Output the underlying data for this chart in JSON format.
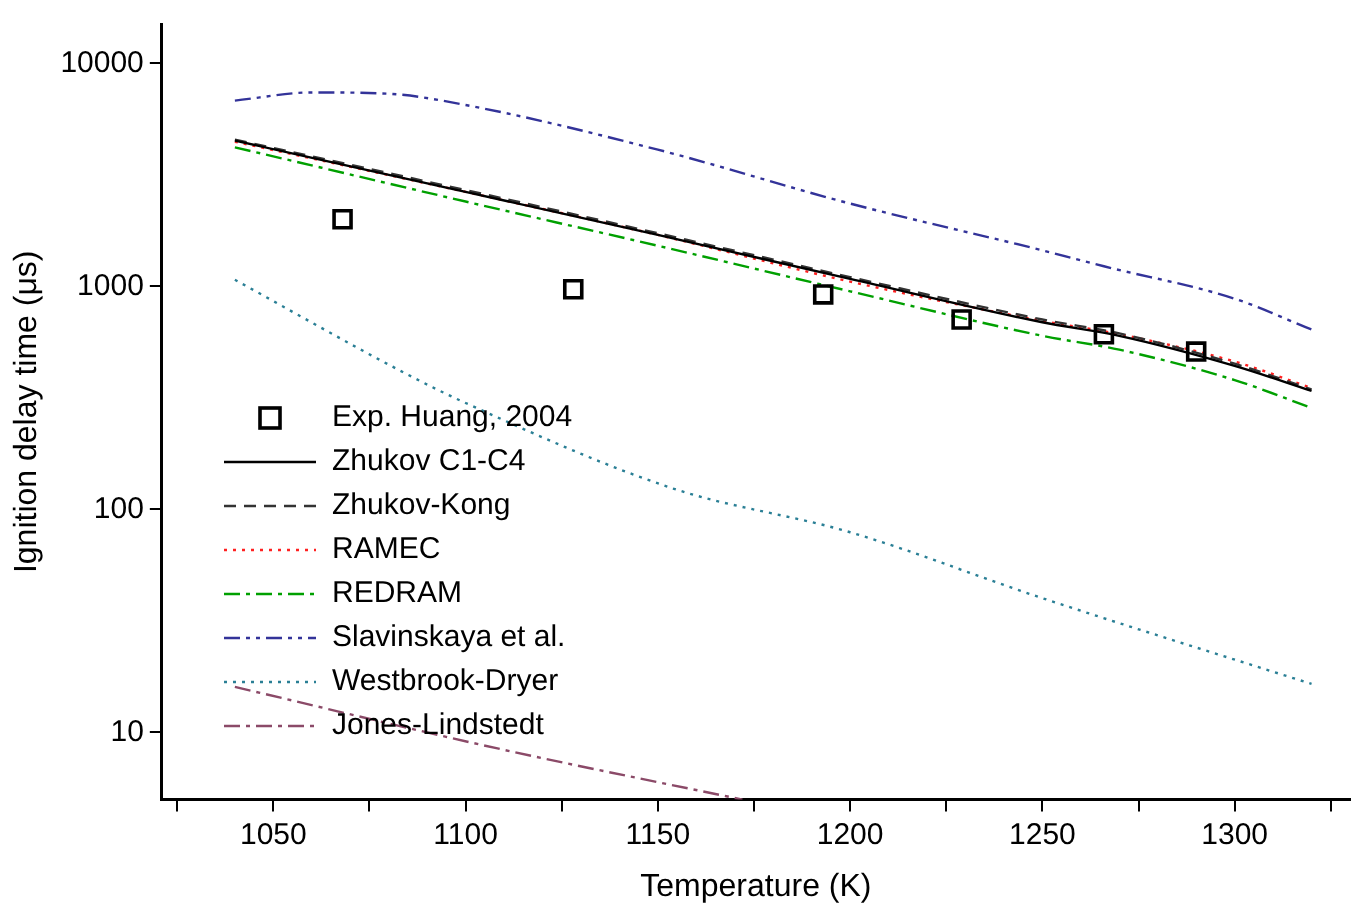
{
  "chart_data": {
    "type": "line",
    "xlabel": "Temperature (K)",
    "ylabel": "Ignition delay time (μs)",
    "xlim": [
      1021,
      1330
    ],
    "ylim": [
      5,
      15000
    ],
    "log": "y",
    "grid": false,
    "legend": "bottom left",
    "xticks": [
      {
        "value": 1025,
        "label": null
      },
      1050,
      {
        "value": 1075,
        "label": null
      },
      1100,
      {
        "value": 1125,
        "label": null
      },
      1150,
      {
        "value": 1175,
        "label": null
      },
      1200,
      {
        "value": 1225,
        "label": null
      },
      1250,
      {
        "value": 1275,
        "label": null
      },
      1300,
      {
        "value": 1325,
        "label": null
      }
    ],
    "yticks": [
      10,
      100,
      1000,
      10000
    ],
    "series": [
      {
        "name": "Exp. Huang, 2004",
        "type": "scatter",
        "marker": "square",
        "color": "#000000",
        "x": [
          1068,
          1128,
          1193,
          1229,
          1266,
          1290
        ],
        "values": [
          2000,
          970,
          920,
          710,
          610,
          510
        ]
      },
      {
        "name": "Zhukov C1-C4",
        "color": "#000000",
        "line_style": "solid",
        "x": [
          1040,
          1100,
          1150,
          1200,
          1250,
          1270,
          1300,
          1320
        ],
        "values": [
          4500,
          2650,
          1700,
          1080,
          690,
          600,
          440,
          340
        ]
      },
      {
        "name": "Zhukov-Kong",
        "color": "#333333",
        "line_style": "dashed",
        "x": [
          1040,
          1100,
          1150,
          1200,
          1250,
          1270,
          1300,
          1320
        ],
        "values": [
          4550,
          2700,
          1730,
          1100,
          710,
          615,
          450,
          345
        ]
      },
      {
        "name": "RAMEC",
        "color": "#ff2020",
        "line_style": "dotted",
        "x": [
          1040,
          1100,
          1150,
          1200,
          1250,
          1270,
          1300,
          1320
        ],
        "values": [
          4450,
          2650,
          1700,
          1050,
          700,
          610,
          460,
          350
        ]
      },
      {
        "name": "REDRAM",
        "color": "#00a000",
        "line_style": "dashdot",
        "x": [
          1040,
          1100,
          1150,
          1200,
          1250,
          1270,
          1300,
          1320
        ],
        "values": [
          4200,
          2400,
          1520,
          950,
          600,
          520,
          380,
          285
        ]
      },
      {
        "name": "Slavinskaya et al.",
        "color": "#333399",
        "line_style": "dashdotdot",
        "x": [
          1040,
          1060,
          1080,
          1100,
          1150,
          1200,
          1250,
          1266,
          1300,
          1320
        ],
        "values": [
          6800,
          7400,
          7300,
          6500,
          4100,
          2350,
          1450,
          1230,
          880,
          640
        ]
      },
      {
        "name": "Westbrook-Dryer",
        "color": "#2a7f95",
        "line_style": "dotted",
        "x": [
          1040,
          1084,
          1100,
          1154,
          1200,
          1250,
          1320
        ],
        "values": [
          1070,
          410,
          300,
          124,
          79,
          40,
          16.5
        ]
      },
      {
        "name": "Jones-Lindstedt",
        "color": "#8b4a68",
        "line_style": "dashdot",
        "x": [
          1040,
          1108,
          1172
        ],
        "values": [
          16,
          8.5,
          5
        ]
      }
    ]
  }
}
